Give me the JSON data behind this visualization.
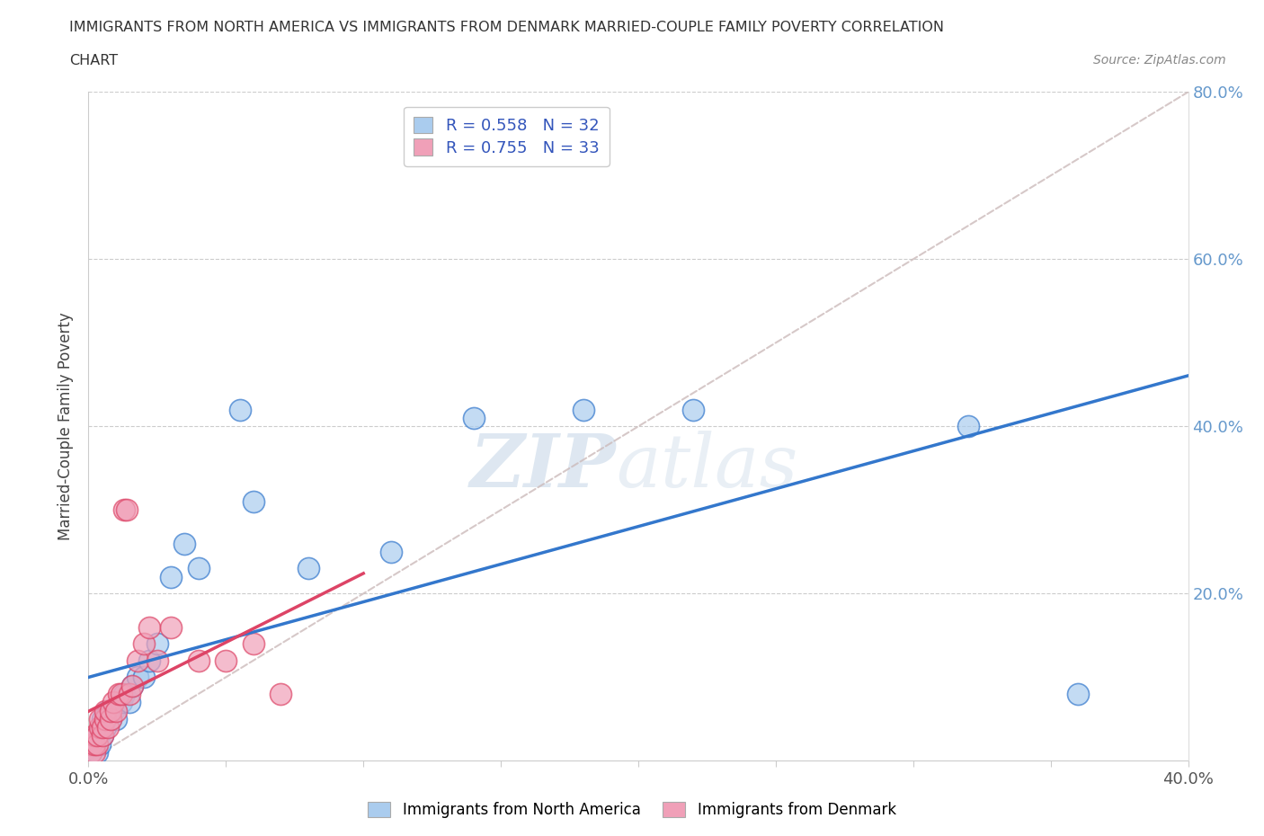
{
  "title_line1": "IMMIGRANTS FROM NORTH AMERICA VS IMMIGRANTS FROM DENMARK MARRIED-COUPLE FAMILY POVERTY CORRELATION",
  "title_line2": "CHART",
  "source": "Source: ZipAtlas.com",
  "ylabel": "Married-Couple Family Poverty",
  "xmin": 0.0,
  "xmax": 0.4,
  "ymin": 0.0,
  "ymax": 0.8,
  "blue_color": "#aaccee",
  "pink_color": "#f0a0b8",
  "blue_line_color": "#3377cc",
  "pink_line_color": "#dd4466",
  "ref_line_color": "#ccbbbb",
  "right_label_color": "#6699cc",
  "legend_text_color": "#3355bb",
  "R_blue": 0.558,
  "N_blue": 32,
  "R_pink": 0.755,
  "N_pink": 33,
  "blue_x": [
    0.001,
    0.002,
    0.003,
    0.003,
    0.004,
    0.005,
    0.005,
    0.006,
    0.007,
    0.008,
    0.009,
    0.01,
    0.012,
    0.013,
    0.015,
    0.016,
    0.018,
    0.02,
    0.022,
    0.025,
    0.03,
    0.035,
    0.04,
    0.055,
    0.06,
    0.08,
    0.11,
    0.14,
    0.18,
    0.22,
    0.32,
    0.36
  ],
  "blue_y": [
    0.01,
    0.02,
    0.01,
    0.03,
    0.02,
    0.03,
    0.05,
    0.04,
    0.06,
    0.05,
    0.06,
    0.05,
    0.07,
    0.08,
    0.07,
    0.09,
    0.1,
    0.1,
    0.12,
    0.14,
    0.22,
    0.26,
    0.23,
    0.42,
    0.31,
    0.23,
    0.25,
    0.41,
    0.42,
    0.42,
    0.4,
    0.08
  ],
  "pink_x": [
    0.001,
    0.001,
    0.002,
    0.002,
    0.002,
    0.003,
    0.003,
    0.004,
    0.004,
    0.005,
    0.005,
    0.006,
    0.006,
    0.007,
    0.008,
    0.008,
    0.009,
    0.01,
    0.011,
    0.012,
    0.013,
    0.014,
    0.015,
    0.016,
    0.018,
    0.02,
    0.022,
    0.025,
    0.03,
    0.04,
    0.05,
    0.06,
    0.07
  ],
  "pink_y": [
    0.01,
    0.02,
    0.01,
    0.02,
    0.03,
    0.02,
    0.03,
    0.04,
    0.05,
    0.03,
    0.04,
    0.05,
    0.06,
    0.04,
    0.05,
    0.06,
    0.07,
    0.06,
    0.08,
    0.08,
    0.3,
    0.3,
    0.08,
    0.09,
    0.12,
    0.14,
    0.16,
    0.12,
    0.16,
    0.12,
    0.12,
    0.14,
    0.08
  ],
  "watermark_zip": "ZIP",
  "watermark_atlas": "atlas",
  "background_color": "#ffffff"
}
